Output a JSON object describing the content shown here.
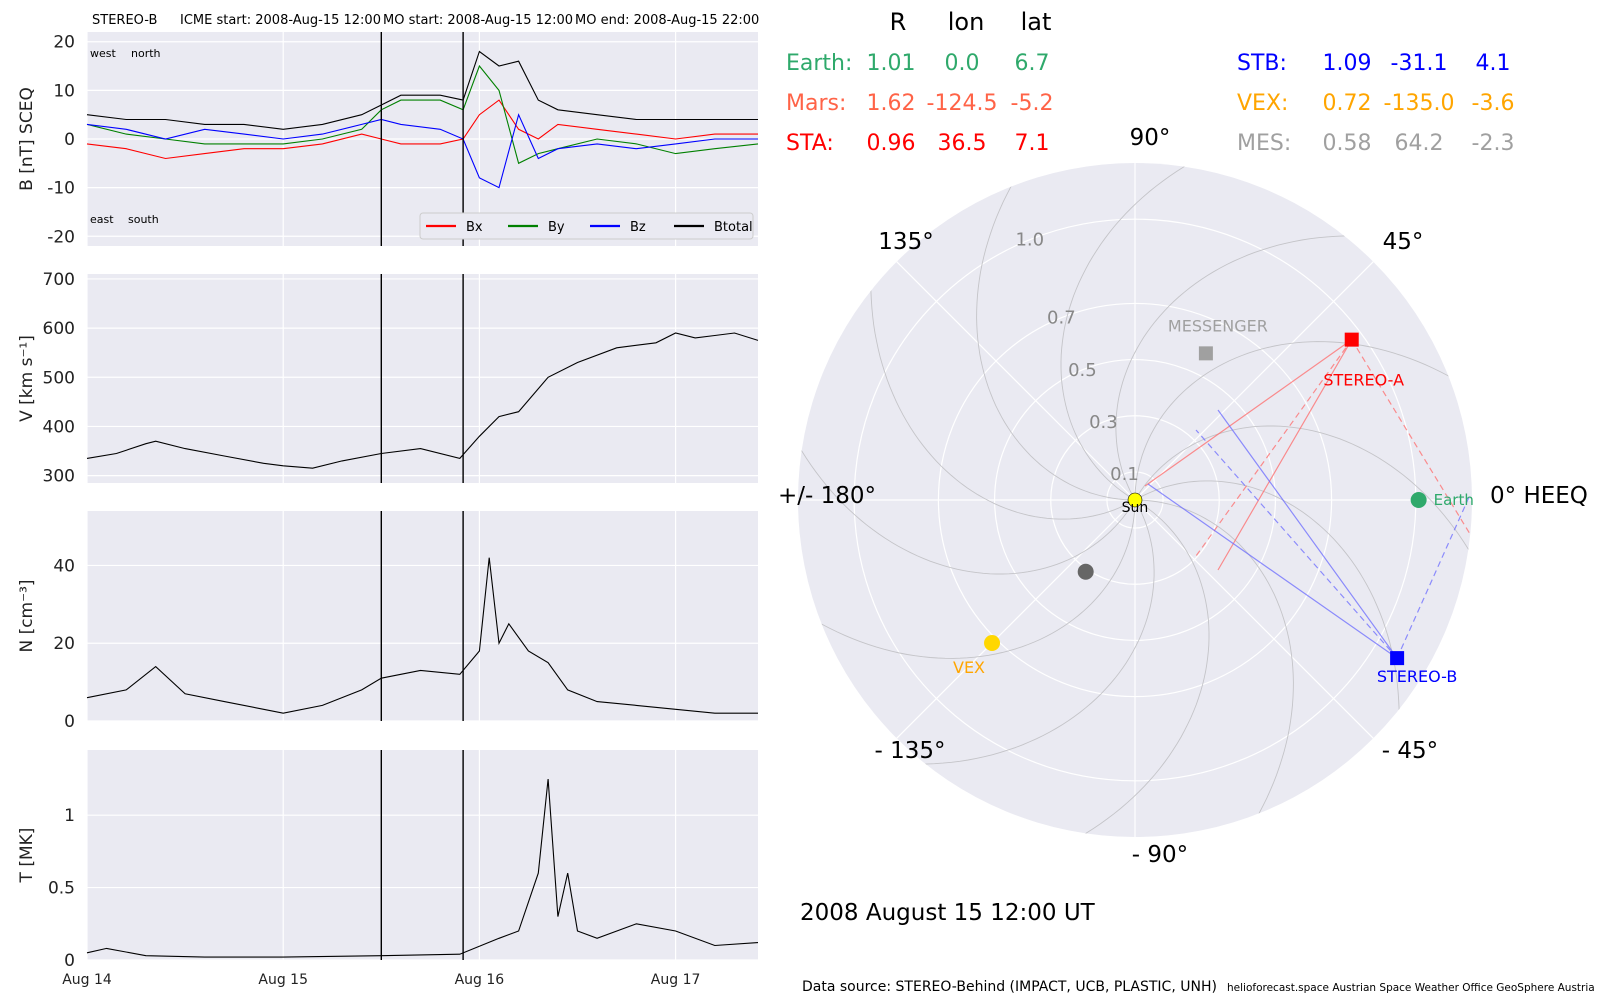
{
  "header": {
    "spacecraft": "STEREO-B",
    "icme_start": "ICME start: 2008-Aug-15 12:00",
    "mo_start": "MO start: 2008-Aug-15 12:00",
    "mo_end": "MO end: 2008-Aug-15 22:00"
  },
  "chart_data": [
    {
      "type": "line",
      "ylabel": "B [nT] SCEQ",
      "ylim": [
        -22,
        22
      ],
      "yticks": [
        20,
        10,
        0,
        -10,
        -20
      ],
      "x_ticks": [
        "Aug 14",
        "Aug 15",
        "Aug 16",
        "Aug 17"
      ],
      "x_range_days": [
        0,
        3.42
      ],
      "event_lines_days": [
        1.5,
        1.917
      ],
      "corner_labels": {
        "top_left": "west",
        "top_right": "north",
        "bottom_left": "east",
        "bottom_right": "south"
      },
      "series": [
        {
          "name": "Bx",
          "color": "#ff0000",
          "x": [
            0,
            0.2,
            0.4,
            0.6,
            0.8,
            1.0,
            1.2,
            1.4,
            1.5,
            1.6,
            1.8,
            1.917,
            2.0,
            2.1,
            2.2,
            2.3,
            2.4,
            2.6,
            2.8,
            3.0,
            3.2,
            3.42
          ],
          "values": [
            -1,
            -2,
            -4,
            -3,
            -2,
            -2,
            -1,
            1,
            0,
            -1,
            -1,
            0,
            5,
            8,
            2,
            0,
            3,
            2,
            1,
            0,
            1,
            1
          ]
        },
        {
          "name": "By",
          "color": "#008000",
          "x": [
            0,
            0.2,
            0.4,
            0.6,
            0.8,
            1.0,
            1.2,
            1.4,
            1.5,
            1.6,
            1.8,
            1.917,
            2.0,
            2.1,
            2.2,
            2.3,
            2.4,
            2.6,
            2.8,
            3.0,
            3.2,
            3.42
          ],
          "values": [
            3,
            1,
            0,
            -1,
            -1,
            -1,
            0,
            2,
            6,
            8,
            8,
            6,
            15,
            10,
            -5,
            -3,
            -2,
            0,
            -1,
            -3,
            -2,
            -1
          ]
        },
        {
          "name": "Bz",
          "color": "#0000ff",
          "x": [
            0,
            0.2,
            0.4,
            0.6,
            0.8,
            1.0,
            1.2,
            1.4,
            1.5,
            1.6,
            1.8,
            1.917,
            2.0,
            2.1,
            2.2,
            2.3,
            2.4,
            2.6,
            2.8,
            3.0,
            3.2,
            3.42
          ],
          "values": [
            3,
            2,
            0,
            2,
            1,
            0,
            1,
            3,
            4,
            3,
            2,
            0,
            -8,
            -10,
            5,
            -4,
            -2,
            -1,
            -2,
            -1,
            0,
            0
          ]
        },
        {
          "name": "Btotal",
          "color": "#000000",
          "x": [
            0,
            0.2,
            0.4,
            0.6,
            0.8,
            1.0,
            1.2,
            1.4,
            1.5,
            1.6,
            1.8,
            1.917,
            2.0,
            2.1,
            2.2,
            2.3,
            2.4,
            2.6,
            2.8,
            3.0,
            3.2,
            3.42
          ],
          "values": [
            5,
            4,
            4,
            3,
            3,
            2,
            3,
            5,
            7,
            9,
            9,
            8,
            18,
            15,
            16,
            8,
            6,
            5,
            4,
            4,
            4,
            4
          ]
        }
      ],
      "legend_position": "lower right"
    },
    {
      "type": "line",
      "ylabel": "V [km s⁻¹]",
      "ylim": [
        285,
        710
      ],
      "yticks": [
        700,
        600,
        500,
        400,
        300
      ],
      "x_ticks": [
        "Aug 14",
        "Aug 15",
        "Aug 16",
        "Aug 17"
      ],
      "x_range_days": [
        0,
        3.42
      ],
      "event_lines_days": [
        1.5,
        1.917
      ],
      "series": [
        {
          "name": "",
          "color": "#000000",
          "x": [
            0,
            0.15,
            0.3,
            0.35,
            0.5,
            0.7,
            0.9,
            1.0,
            1.15,
            1.3,
            1.5,
            1.7,
            1.9,
            2.0,
            2.1,
            2.2,
            2.35,
            2.5,
            2.7,
            2.9,
            3.0,
            3.1,
            3.2,
            3.3,
            3.42
          ],
          "values": [
            335,
            345,
            365,
            370,
            355,
            340,
            325,
            320,
            315,
            330,
            345,
            355,
            335,
            380,
            420,
            430,
            500,
            530,
            560,
            570,
            590,
            580,
            585,
            590,
            575
          ]
        }
      ]
    },
    {
      "type": "line",
      "ylabel": "N [cm⁻³]",
      "ylim": [
        0,
        54
      ],
      "yticks": [
        40,
        20,
        0
      ],
      "x_ticks": [
        "Aug 14",
        "Aug 15",
        "Aug 16",
        "Aug 17"
      ],
      "x_range_days": [
        0,
        3.42
      ],
      "event_lines_days": [
        1.5,
        1.917
      ],
      "series": [
        {
          "name": "",
          "color": "#000000",
          "x": [
            0,
            0.2,
            0.35,
            0.5,
            0.7,
            0.9,
            1.0,
            1.2,
            1.4,
            1.5,
            1.7,
            1.9,
            2.0,
            2.05,
            2.1,
            2.15,
            2.25,
            2.35,
            2.45,
            2.6,
            2.8,
            3.0,
            3.2,
            3.42
          ],
          "values": [
            6,
            8,
            14,
            7,
            5,
            3,
            2,
            4,
            8,
            11,
            13,
            12,
            18,
            42,
            20,
            25,
            18,
            15,
            8,
            5,
            4,
            3,
            2,
            2
          ]
        }
      ]
    },
    {
      "type": "line",
      "ylabel": "T [MK]",
      "ylim": [
        0,
        1.45
      ],
      "yticks": [
        1.0,
        0.5,
        0.0
      ],
      "x_ticks": [
        "Aug 14",
        "Aug 15",
        "Aug 16",
        "Aug 17"
      ],
      "x_range_days": [
        0,
        3.42
      ],
      "event_lines_days": [
        1.5,
        1.917
      ],
      "series": [
        {
          "name": "",
          "color": "#000000",
          "x": [
            0,
            0.1,
            0.3,
            0.6,
            1.0,
            1.5,
            1.9,
            2.1,
            2.2,
            2.3,
            2.35,
            2.4,
            2.45,
            2.5,
            2.6,
            2.8,
            3.0,
            3.2,
            3.42
          ],
          "values": [
            0.05,
            0.08,
            0.03,
            0.02,
            0.02,
            0.03,
            0.04,
            0.15,
            0.2,
            0.6,
            1.25,
            0.3,
            0.6,
            0.2,
            0.15,
            0.25,
            0.2,
            0.1,
            0.12
          ]
        }
      ]
    },
    {
      "type": "scatter",
      "subtype": "polar",
      "angle_ticks": [
        {
          "deg": 90,
          "label": "90°"
        },
        {
          "deg": 45,
          "label": "45°"
        },
        {
          "deg": 0,
          "label": "0° HEEQ"
        },
        {
          "deg": -45,
          "label": "- 45°"
        },
        {
          "deg": -90,
          "label": "- 90°"
        },
        {
          "deg": -135,
          "label": "- 135°"
        },
        {
          "deg": 180,
          "label": "+/- 180°"
        },
        {
          "deg": 135,
          "label": "135°"
        }
      ],
      "radial_ticks": [
        "0.1",
        "0.3",
        "0.5",
        "0.7",
        "1.0"
      ],
      "rlim": [
        0,
        1.2
      ],
      "bodies": [
        {
          "name": "Sun",
          "r": 0.0,
          "lon": 0.0,
          "color": "#ffff00",
          "marker": "circle",
          "label_color": "#000000"
        },
        {
          "name": "Earth",
          "r": 1.01,
          "lon": 0.0,
          "color": "#2fa96b",
          "marker": "circle",
          "label_color": "#2fa96b"
        },
        {
          "name": "STEREO-A",
          "r": 0.96,
          "lon": 36.5,
          "color": "#ff0000",
          "marker": "square",
          "label_color": "#ff0000"
        },
        {
          "name": "STEREO-B",
          "r": 1.09,
          "lon": -31.1,
          "color": "#0000ff",
          "marker": "square",
          "label_color": "#0000ff"
        },
        {
          "name": "VEX",
          "r": 0.72,
          "lon": -135.0,
          "color": "#ffd700",
          "marker": "circle",
          "label_color": "#ffa500"
        },
        {
          "name": "MESSENGER",
          "r": 0.58,
          "lon": 64.2,
          "color": "#a0a0a0",
          "marker": "square",
          "label_color": "#a0a0a0"
        },
        {
          "name": "",
          "r": 0.31,
          "lon": -124.5,
          "color": "#666666",
          "marker": "circle",
          "label_color": "#666666"
        }
      ]
    }
  ],
  "positions_table": {
    "columns": [
      "R",
      "lon",
      "lat"
    ],
    "rows": [
      {
        "name": "Earth:",
        "r": "1.01",
        "lon": "0.0",
        "lat": "6.7",
        "color": "#2fa96b"
      },
      {
        "name": "Mars:",
        "r": "1.62",
        "lon": "-124.5",
        "lat": "-5.2",
        "color": "#ff6347"
      },
      {
        "name": "STA:",
        "r": "0.96",
        "lon": "36.5",
        "lat": "7.1",
        "color": "#ff0000"
      },
      {
        "name": "STB:",
        "r": "1.09",
        "lon": "-31.1",
        "lat": "4.1",
        "color": "#0000ff"
      },
      {
        "name": "VEX:",
        "r": "0.72",
        "lon": "-135.0",
        "lat": "-3.6",
        "color": "#ffa500"
      },
      {
        "name": "MES:",
        "r": "0.58",
        "lon": "64.2",
        "lat": "-2.3",
        "color": "#a0a0a0"
      }
    ]
  },
  "date_label": "2008 August 15  12:00 UT",
  "footer": {
    "source": "Data source: STEREO-Behind (IMPACT, UCB, PLASTIC, UNH)",
    "credits": "helioforecast.space   Austrian Space Weather Office   GeoSphere Austria"
  }
}
